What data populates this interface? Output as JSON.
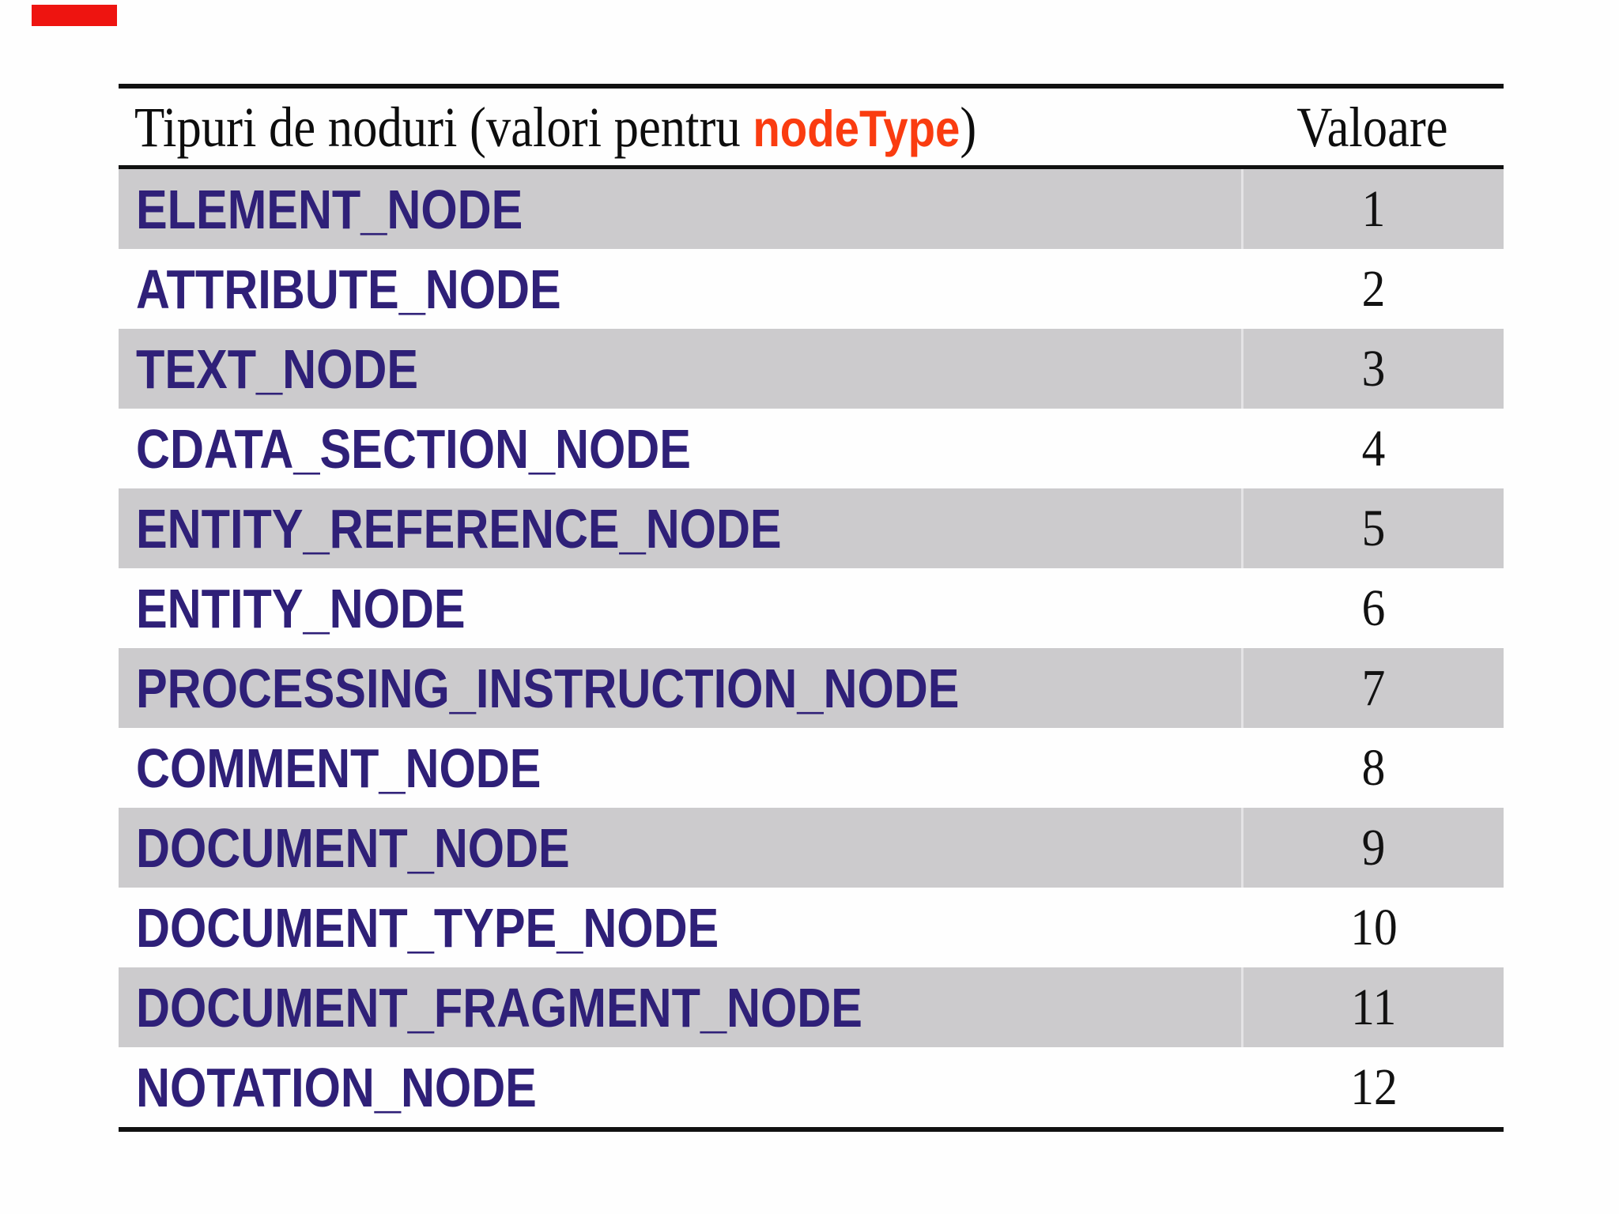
{
  "colors": {
    "accent-red": "#ee1410",
    "row-gray": "#cccbcd",
    "row-white": "#fefefe",
    "label-purple": "#2f2078",
    "code-orange": "#fa3c10",
    "rule-black": "#111111",
    "divider-light": "#e4e3e5",
    "header-text": "#0d0d0d"
  },
  "table": {
    "header": {
      "title_prefix": "Tipuri de noduri (valori pentru ",
      "title_code": "nodeType",
      "title_suffix": ")",
      "value_column": "Valoare"
    },
    "rows": [
      {
        "label": "ELEMENT_NODE",
        "value": "1"
      },
      {
        "label": "ATTRIBUTE_NODE",
        "value": "2"
      },
      {
        "label": "TEXT_NODE",
        "value": "3"
      },
      {
        "label": "CDATA_SECTION_NODE",
        "value": "4"
      },
      {
        "label": "ENTITY_REFERENCE_NODE",
        "value": "5"
      },
      {
        "label": "ENTITY_NODE",
        "value": "6"
      },
      {
        "label": "PROCESSING_INSTRUCTION_NODE",
        "value": "7"
      },
      {
        "label": "COMMENT_NODE",
        "value": "8"
      },
      {
        "label": "DOCUMENT_NODE",
        "value": "9"
      },
      {
        "label": "DOCUMENT_TYPE_NODE",
        "value": "10"
      },
      {
        "label": "DOCUMENT_FRAGMENT_NODE",
        "value": "11"
      },
      {
        "label": "NOTATION_NODE",
        "value": "12"
      }
    ]
  }
}
